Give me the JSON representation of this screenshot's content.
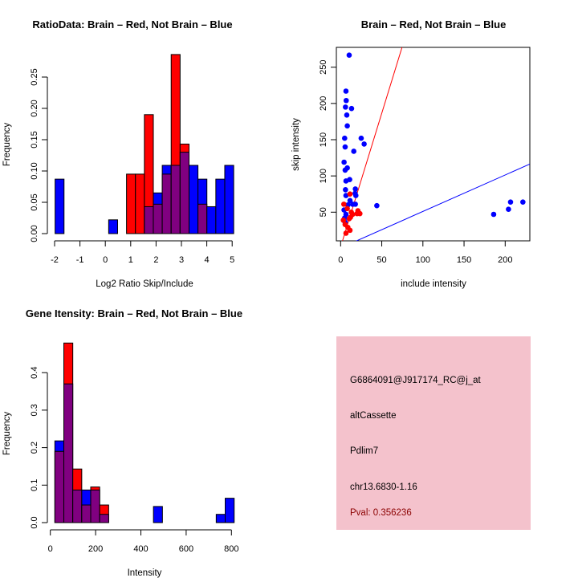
{
  "colors": {
    "red": "#ff0000",
    "blue": "#0000ff",
    "overlap": "#800080",
    "panel": "#f4c2cc",
    "pval": "#8b0000"
  },
  "chart_data": [
    {
      "type": "bar",
      "title": "RatioData: Brain – Red, Not Brain – Blue",
      "xlabel": "Log2 Ratio Skip/Include",
      "ylabel": "Frequency",
      "xlim": [
        -2,
        5
      ],
      "ylim": [
        0,
        0.29
      ],
      "xticks": [
        "-2",
        "-1",
        "0",
        "1",
        "2",
        "3",
        "4",
        "5"
      ],
      "yticks": [
        "0.00",
        "0.05",
        "0.10",
        "0.15",
        "0.20",
        "0.25"
      ],
      "bin_start": -1.98,
      "bin_width": 0.352,
      "series": [
        {
          "name": "Brain",
          "color": "red",
          "values": [
            0,
            0,
            0,
            0,
            0,
            0,
            0,
            0,
            0.095,
            0.095,
            0.19,
            0.047,
            0.095,
            0.286,
            0.143,
            0,
            0.047,
            0,
            0,
            0
          ]
        },
        {
          "name": "Not Brain",
          "color": "blue",
          "values": [
            0.087,
            0,
            0,
            0,
            0,
            0,
            0.022,
            0,
            0,
            0,
            0.043,
            0.065,
            0.109,
            0.109,
            0.13,
            0.109,
            0.087,
            0.043,
            0.087,
            0.109
          ]
        }
      ]
    },
    {
      "type": "scatter",
      "title": "Brain – Red, Not Brain – Blue",
      "xlabel": "include intensity",
      "ylabel": "skip intensity",
      "xlim": [
        -4.9,
        230
      ],
      "ylim": [
        10.5,
        277
      ],
      "xticks": [
        "0",
        "50",
        "100",
        "150",
        "200"
      ],
      "yticks": [
        "50",
        "100",
        "150",
        "200",
        "250"
      ],
      "lines": [
        {
          "color": "red",
          "slope": 3.69,
          "intercept": 2.0
        },
        {
          "color": "blue",
          "slope": 0.503,
          "intercept": 0.7
        }
      ],
      "series": [
        {
          "name": "Not Brain",
          "color": "blue",
          "points": [
            [
              10.4,
              266.6
            ],
            [
              6.5,
              217
            ],
            [
              6.8,
              204
            ],
            [
              5.9,
              195
            ],
            [
              13.3,
              193
            ],
            [
              7.5,
              184
            ],
            [
              8.1,
              169
            ],
            [
              4.9,
              152
            ],
            [
              25,
              152
            ],
            [
              28.6,
              144
            ],
            [
              5.5,
              140
            ],
            [
              16,
              134
            ],
            [
              4.2,
              119
            ],
            [
              8.1,
              111
            ],
            [
              5.5,
              108
            ],
            [
              11,
              95
            ],
            [
              6.5,
              93
            ],
            [
              5.9,
              81
            ],
            [
              17.9,
              82
            ],
            [
              17.6,
              76
            ],
            [
              6.5,
              73
            ],
            [
              18.5,
              73
            ],
            [
              11.4,
              66
            ],
            [
              8.8,
              60
            ],
            [
              14.6,
              61
            ],
            [
              17.9,
              61
            ],
            [
              44,
              59
            ],
            [
              4.2,
              53
            ],
            [
              6.5,
              47
            ],
            [
              4.9,
              42
            ],
            [
              5.5,
              36
            ],
            [
              186,
              47
            ],
            [
              204,
              54
            ],
            [
              206.5,
              64
            ],
            [
              221.5,
              64
            ]
          ]
        },
        {
          "name": "Brain",
          "color": "red",
          "points": [
            [
              3.9,
              61
            ],
            [
              11.4,
              75
            ],
            [
              6.5,
              21
            ],
            [
              11.4,
              25
            ],
            [
              3.3,
              39
            ],
            [
              5.5,
              33
            ],
            [
              12,
              43
            ],
            [
              14.6,
              47
            ],
            [
              21,
              52
            ],
            [
              23.4,
              48
            ],
            [
              20,
              48
            ],
            [
              10.4,
              41
            ],
            [
              8.8,
              29
            ],
            [
              13,
              50
            ],
            [
              8.1,
              55
            ]
          ]
        }
      ]
    },
    {
      "type": "bar",
      "title": "Gene Itensity: Brain – Red, Not Brain – Blue",
      "xlabel": "Intensity",
      "ylabel": "Frequency",
      "xlim": [
        0,
        800
      ],
      "ylim": [
        0,
        0.48
      ],
      "xticks": [
        "0",
        "200",
        "400",
        "600",
        "800"
      ],
      "yticks": [
        "0.0",
        "0.1",
        "0.2",
        "0.3",
        "0.4"
      ],
      "bin_start": 20,
      "bin_width": 39.6,
      "series": [
        {
          "name": "Brain",
          "color": "red",
          "values": [
            0.19,
            0.479,
            0.143,
            0.047,
            0.095,
            0.047,
            0,
            0,
            0,
            0,
            0,
            0,
            0,
            0,
            0,
            0,
            0,
            0,
            0,
            0
          ]
        },
        {
          "name": "Not Brain",
          "color": "blue",
          "values": [
            0.218,
            0.37,
            0.087,
            0.087,
            0.087,
            0.022,
            0,
            0,
            0,
            0,
            0,
            0.043,
            0,
            0,
            0,
            0,
            0,
            0,
            0.022,
            0.065
          ]
        }
      ]
    }
  ],
  "info": {
    "probe": "G6864091@J917174_RC@j_at",
    "event": "altCassette",
    "gene": "Pdlim7",
    "location": "chr13.6830-1.16",
    "pval": "Pval: 0.356236"
  }
}
